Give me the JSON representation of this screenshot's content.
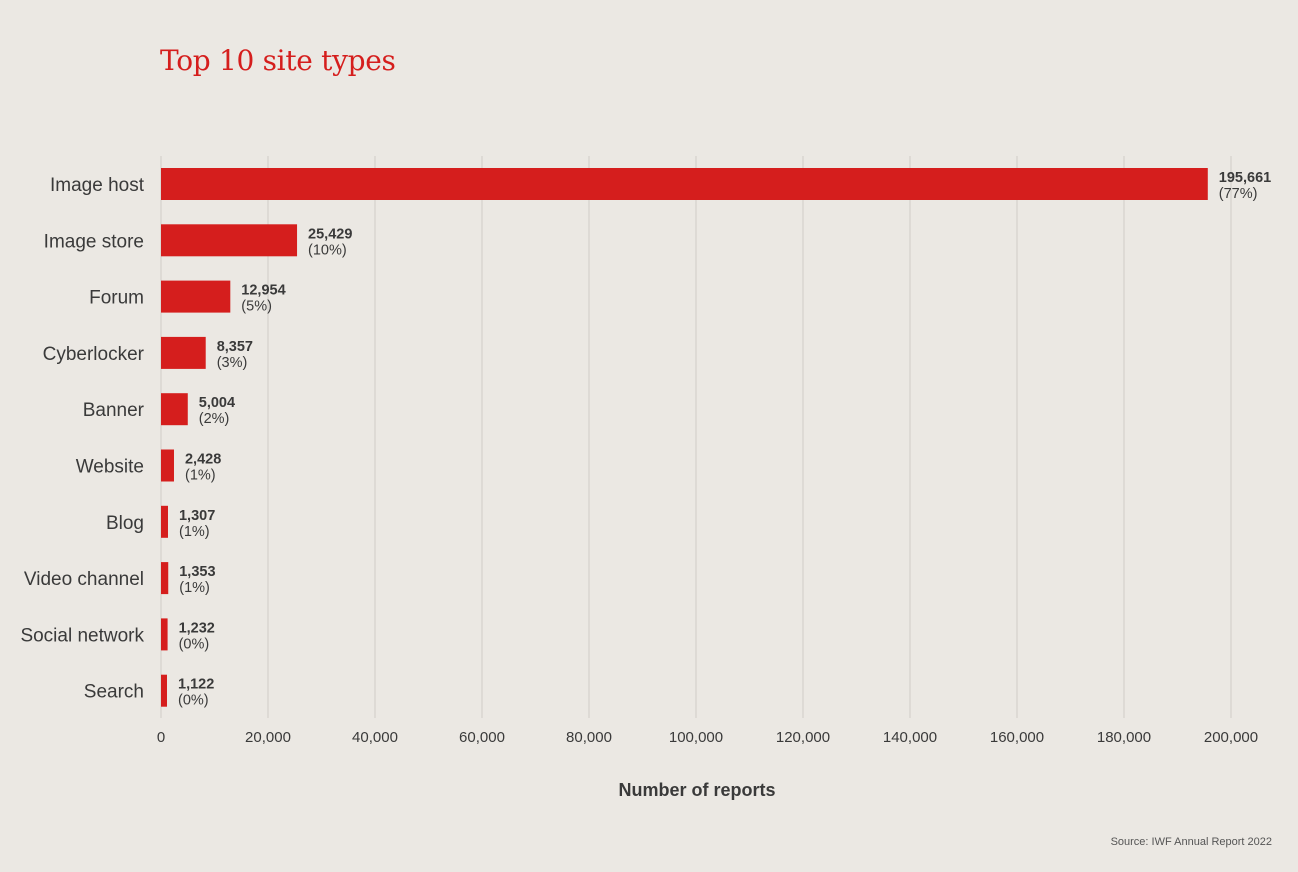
{
  "chart_data": {
    "type": "bar",
    "orientation": "horizontal",
    "title": "Top 10 site types",
    "xlabel": "Number of reports",
    "ylabel": "",
    "categories": [
      "Image host",
      "Image store",
      "Forum",
      "Cyberlocker",
      "Banner",
      "Website",
      "Blog",
      "Video channel",
      "Social network",
      "Search"
    ],
    "values": [
      195661,
      25429,
      12954,
      8357,
      5004,
      2428,
      1307,
      1353,
      1232,
      1122
    ],
    "value_labels": [
      "195,661",
      "25,429",
      "12,954",
      "8,357",
      "5,004",
      "2,428",
      "1,307",
      "1,353",
      "1,232",
      "1,122"
    ],
    "percent_labels": [
      "(77%)",
      "(10%)",
      "(5%)",
      "(3%)",
      "(2%)",
      "(1%)",
      "(1%)",
      "(1%)",
      "(0%)",
      "(0%)"
    ],
    "xlim": [
      0,
      200000
    ],
    "xticks": [
      0,
      20000,
      40000,
      60000,
      80000,
      100000,
      120000,
      140000,
      160000,
      180000,
      200000
    ],
    "xtick_labels": [
      "0",
      "20,000",
      "40,000",
      "60,000",
      "80,000",
      "100,000",
      "120,000",
      "140,000",
      "160,000",
      "180,000",
      "200,000"
    ],
    "grid": "vertical",
    "bar_color": "#d51e1d",
    "grid_color": "#d4d1cc"
  },
  "source": "Source: IWF Annual Report 2022"
}
